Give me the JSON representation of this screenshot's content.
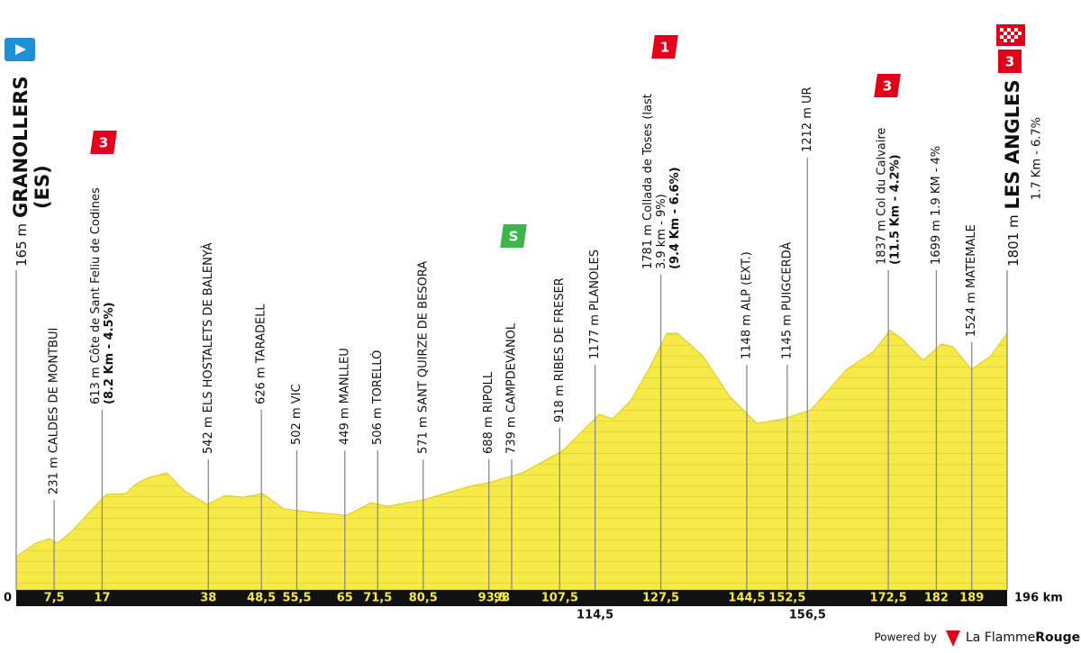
{
  "chart_data": {
    "type": "profile",
    "start": {
      "alt_label": "165 m",
      "name": "GRANOLLERS",
      "country": "(ES)"
    },
    "finish": {
      "alt_label": "1801 m",
      "name": "LES ANGLES",
      "note": "1.7 Km - 6.7%",
      "badge": "3"
    },
    "xlim": [
      0,
      196
    ],
    "xticks": [
      0,
      {
        "value": 196,
        "label": "196 km"
      }
    ],
    "profile": {
      "km": [
        0,
        3.9,
        6.6,
        8.2,
        11,
        14.6,
        17.8,
        21.7,
        23.5,
        26.2,
        29.8,
        33.3,
        37.8,
        41.3,
        44.9,
        48.8,
        52.9,
        57.4,
        65.4,
        70.2,
        73.4,
        80.5,
        89.5,
        93.9,
        100.1,
        108.2,
        115.3,
        118,
        121.5,
        125.1,
        128.7,
        130.8,
        135.8,
        141.1,
        146.5,
        151.8,
        157.2,
        164.3,
        169.6,
        172.8,
        175,
        179.4,
        183,
        185.3,
        188.9,
        192.8,
        196
      ],
      "alt": [
        165,
        264,
        297,
        264,
        350,
        495,
        620,
        627,
        693,
        745,
        778,
        646,
        547,
        613,
        600,
        627,
        515,
        495,
        468,
        561,
        534,
        580,
        679,
        712,
        778,
        943,
        1207,
        1174,
        1306,
        1537,
        1801,
        1801,
        1636,
        1339,
        1141,
        1174,
        1240,
        1537,
        1669,
        1821,
        1768,
        1603,
        1722,
        1702,
        1537,
        1636,
        1801
      ]
    },
    "waypoints": [
      {
        "km": {
          "value": 7.5,
          "label": "7,5"
        },
        "name": "231 m CALDES DE MONTBUI"
      },
      {
        "km": {
          "value": 17,
          "label": "17"
        },
        "name": "613 m Côte de Sant Feliu de Codines",
        "detail": "(8.2 Km - 4.5%)",
        "badge": "3"
      },
      {
        "km": {
          "value": 38,
          "label": "38"
        },
        "name": "542 m ELS HOSTALETS DE BALENYÀ"
      },
      {
        "km": {
          "value": 48.5,
          "label": "48,5"
        },
        "name": "626 m TARADELL"
      },
      {
        "km": {
          "value": 55.5,
          "label": "55,5"
        },
        "name": "502 m VIC"
      },
      {
        "km": {
          "value": 65,
          "label": "65"
        },
        "name": "449 m MANLLEU"
      },
      {
        "km": {
          "value": 71.5,
          "label": "71,5"
        },
        "name": "506 m TORELLÓ"
      },
      {
        "km": {
          "value": 80.5,
          "label": "80,5"
        },
        "name": "571 m SANT QUIRZE DE BESORA"
      },
      {
        "km": {
          "value": 93.5,
          "label": "93,5"
        },
        "name": "688 m RIPOLL"
      },
      {
        "km": {
          "value": 98,
          "label": "98"
        },
        "name": "739 m CAMPDEVÀNOL",
        "badge": "S"
      },
      {
        "km": {
          "value": 107.5,
          "label": "107,5"
        },
        "name": "918 m RIBES DE FRESER"
      },
      {
        "km": {
          "value": 114.5,
          "label": "114,5"
        },
        "name": "1177 m PLANOLES",
        "below": true
      },
      {
        "km": {
          "value": 127.5,
          "label": "127,5"
        },
        "name": "1781 m Collada de Toses (last",
        "note": "3.9 km - 9%)",
        "detail": "(9.4 Km - 6.6%)",
        "badge": "1"
      },
      {
        "km": {
          "value": 144.5,
          "label": "144,5"
        },
        "name": "1148 m ALP (EXT.)"
      },
      {
        "km": {
          "value": 152.5,
          "label": "152,5"
        },
        "name": "1145 m PUIGCERDÀ"
      },
      {
        "km": {
          "value": 156.5,
          "label": "156,5"
        },
        "name": "1212 m UR",
        "below": true
      },
      {
        "km": {
          "value": 172.5,
          "label": "172,5"
        },
        "name": "1837 m Col du Calvaire",
        "detail": "(11.5 Km - 4.2%)",
        "badge": "3"
      },
      {
        "km": {
          "value": 182,
          "label": "182"
        },
        "name": "1699 m 1.9 KM - 4%"
      },
      {
        "km": {
          "value": 189,
          "label": "189"
        },
        "name": "1524 m MATEMALE"
      }
    ],
    "footer": {
      "powered": "Powered by",
      "brand": "La Flamme",
      "brand_bold": "Rouge"
    }
  }
}
